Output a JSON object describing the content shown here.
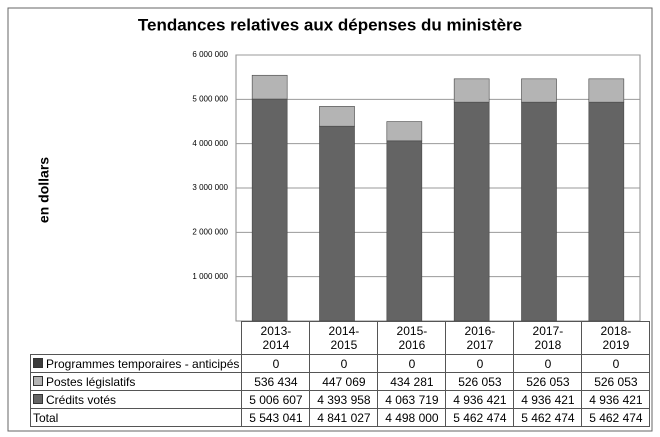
{
  "chart_data": {
    "type": "bar",
    "stacked": true,
    "title": "Tendances relatives aux dépenses du ministère",
    "y_label": "en dollars",
    "categories": [
      "2013-2014",
      "2014-2015",
      "2015-2016",
      "2016-2017",
      "2017-2018",
      "2018-2019"
    ],
    "series": [
      {
        "name": "Programmes temporaires - anticipés",
        "color": "#3c3c3c",
        "values": [
          0,
          0,
          0,
          0,
          0,
          0
        ]
      },
      {
        "name": "Postes législatifs",
        "color": "#b4b4b4",
        "values": [
          536434,
          447069,
          434281,
          526053,
          526053,
          526053
        ],
        "value_labels": [
          "536 434",
          "447 069",
          "434 281",
          "526 053",
          "526 053",
          "526 053"
        ]
      },
      {
        "name": "Crédits votés",
        "color": "#646464",
        "values": [
          5006607,
          4393958,
          4063719,
          4936421,
          4936421,
          4936421
        ],
        "value_labels": [
          "5 006 607",
          "4 393 958",
          "4 063 719",
          "4 936 421",
          "4 936 421",
          "4 936 421"
        ]
      }
    ],
    "total": {
      "name": "Total",
      "values": [
        5543041,
        4841027,
        4498000,
        5462474,
        5462474,
        5462474
      ],
      "value_labels": [
        "5 543 041",
        "4 841 027",
        "4 498 000",
        "5 462 474",
        "5 462 474",
        "5 462 474"
      ]
    },
    "ylim": [
      0,
      6000000
    ],
    "yticks": [
      {
        "value": 1000000,
        "label": "1 000 000"
      },
      {
        "value": 2000000,
        "label": "2 000 000"
      },
      {
        "value": 3000000,
        "label": "3 000 000"
      },
      {
        "value": 4000000,
        "label": "4 000 000"
      },
      {
        "value": 5000000,
        "label": "5 000 000"
      },
      {
        "value": 6000000,
        "label": "6 000 000"
      }
    ],
    "grid": true
  }
}
